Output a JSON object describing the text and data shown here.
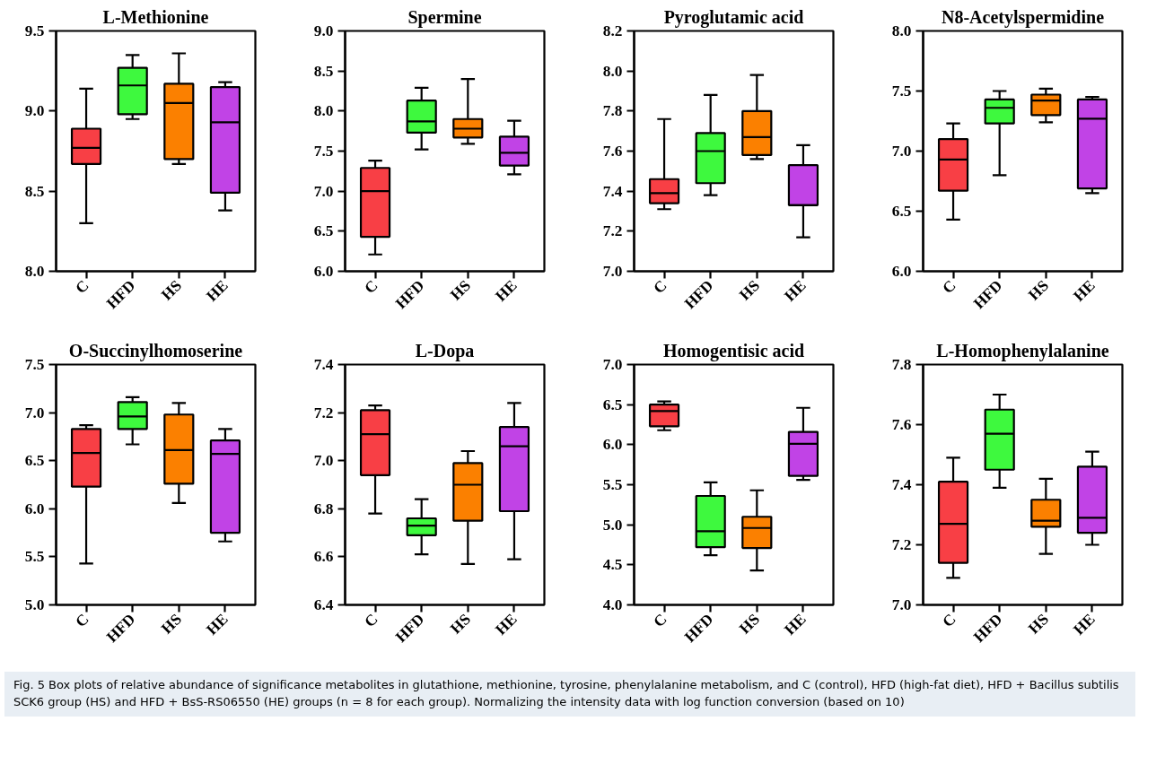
{
  "chart_data": [
    {
      "type": "box",
      "title": "L-Methionine",
      "categories": [
        "C",
        "HFD",
        "HS",
        "HE"
      ],
      "colors": [
        "#f83f45",
        "#3ef93e",
        "#fb8000",
        "#c143e6"
      ],
      "ylim": [
        8.0,
        9.5
      ],
      "yticks": [
        {
          "value": 8.0,
          "label": "8.0"
        },
        {
          "value": 8.5,
          "label": "8.5"
        },
        {
          "value": 9.0,
          "label": "9.0"
        },
        {
          "value": 9.5,
          "label": "9.5"
        }
      ],
      "boxes": [
        {
          "low": 8.3,
          "q1": 8.67,
          "median": 8.77,
          "q3": 8.89,
          "high": 9.14
        },
        {
          "low": 8.95,
          "q1": 8.98,
          "median": 9.16,
          "q3": 9.27,
          "high": 9.35
        },
        {
          "low": 8.67,
          "q1": 8.7,
          "median": 9.05,
          "q3": 9.17,
          "high": 9.36
        },
        {
          "low": 8.38,
          "q1": 8.49,
          "median": 8.93,
          "q3": 9.15,
          "high": 9.18
        }
      ]
    },
    {
      "type": "box",
      "title": "Spermine",
      "categories": [
        "C",
        "HFD",
        "HS",
        "HE"
      ],
      "colors": [
        "#f83f45",
        "#3ef93e",
        "#fb8000",
        "#c143e6"
      ],
      "ylim": [
        6.0,
        9.0
      ],
      "yticks": [
        {
          "value": 6.0,
          "label": "6.0"
        },
        {
          "value": 6.5,
          "label": "6.5"
        },
        {
          "value": 7.0,
          "label": "7.0"
        },
        {
          "value": 7.5,
          "label": "7.5"
        },
        {
          "value": 8.0,
          "label": "8.0"
        },
        {
          "value": 8.5,
          "label": "8.5"
        },
        {
          "value": 9.0,
          "label": "9.0"
        }
      ],
      "boxes": [
        {
          "low": 6.21,
          "q1": 6.43,
          "median": 7.0,
          "q3": 7.29,
          "high": 7.38
        },
        {
          "low": 7.52,
          "q1": 7.73,
          "median": 7.87,
          "q3": 8.13,
          "high": 8.29
        },
        {
          "low": 7.59,
          "q1": 7.67,
          "median": 7.78,
          "q3": 7.9,
          "high": 8.4
        },
        {
          "low": 7.21,
          "q1": 7.32,
          "median": 7.48,
          "q3": 7.68,
          "high": 7.88
        }
      ]
    },
    {
      "type": "box",
      "title": "Pyroglutamic acid",
      "categories": [
        "C",
        "HFD",
        "HS",
        "HE"
      ],
      "colors": [
        "#f83f45",
        "#3ef93e",
        "#fb8000",
        "#c143e6"
      ],
      "ylim": [
        7.0,
        8.2
      ],
      "yticks": [
        {
          "value": 7.0,
          "label": "7.0"
        },
        7.2,
        7.4,
        7.6,
        7.8,
        {
          "value": 8.0,
          "label": "8.0"
        },
        8.2
      ],
      "boxes": [
        {
          "low": 7.31,
          "q1": 7.34,
          "median": 7.39,
          "q3": 7.46,
          "high": 7.76
        },
        {
          "low": 7.38,
          "q1": 7.44,
          "median": 7.6,
          "q3": 7.69,
          "high": 7.88
        },
        {
          "low": 7.56,
          "q1": 7.58,
          "median": 7.67,
          "q3": 7.8,
          "high": 7.98
        },
        {
          "low": 7.17,
          "q1": 7.33,
          "median": 7.33,
          "q3": 7.53,
          "high": 7.63
        }
      ]
    },
    {
      "type": "box",
      "title": "N8-Acetylspermidine",
      "categories": [
        "C",
        "HFD",
        "HS",
        "HE"
      ],
      "colors": [
        "#f83f45",
        "#3ef93e",
        "#fb8000",
        "#c143e6"
      ],
      "ylim": [
        6.0,
        8.0
      ],
      "yticks": [
        {
          "value": 6.0,
          "label": "6.0"
        },
        6.5,
        {
          "value": 7.0,
          "label": "7.0"
        },
        7.5,
        {
          "value": 8.0,
          "label": "8.0"
        }
      ],
      "boxes": [
        {
          "low": 6.43,
          "q1": 6.67,
          "median": 6.93,
          "q3": 7.1,
          "high": 7.23
        },
        {
          "low": 6.8,
          "q1": 7.23,
          "median": 7.36,
          "q3": 7.43,
          "high": 7.5
        },
        {
          "low": 7.24,
          "q1": 7.3,
          "median": 7.42,
          "q3": 7.47,
          "high": 7.52
        },
        {
          "low": 6.65,
          "q1": 6.69,
          "median": 7.27,
          "q3": 7.43,
          "high": 7.45
        }
      ]
    },
    {
      "type": "box",
      "title": "O-Succinylhomoserine",
      "categories": [
        "C",
        "HFD",
        "HS",
        "HE"
      ],
      "colors": [
        "#f83f45",
        "#3ef93e",
        "#fb8000",
        "#c143e6"
      ],
      "ylim": [
        5.0,
        7.5
      ],
      "yticks": [
        {
          "value": 5.0,
          "label": "5.0"
        },
        5.5,
        {
          "value": 6.0,
          "label": "6.0"
        },
        6.5,
        {
          "value": 7.0,
          "label": "7.0"
        },
        7.5
      ],
      "boxes": [
        {
          "low": 5.43,
          "q1": 6.23,
          "median": 6.58,
          "q3": 6.83,
          "high": 6.87
        },
        {
          "low": 6.67,
          "q1": 6.83,
          "median": 6.96,
          "q3": 7.11,
          "high": 7.16
        },
        {
          "low": 6.06,
          "q1": 6.26,
          "median": 6.61,
          "q3": 6.98,
          "high": 7.1
        },
        {
          "low": 5.66,
          "q1": 5.75,
          "median": 6.57,
          "q3": 6.71,
          "high": 6.83
        }
      ]
    },
    {
      "type": "box",
      "title": "L-Dopa",
      "categories": [
        "C",
        "HFD",
        "HS",
        "HE"
      ],
      "colors": [
        "#f83f45",
        "#3ef93e",
        "#fb8000",
        "#c143e6"
      ],
      "ylim": [
        6.4,
        7.4
      ],
      "yticks": [
        6.4,
        6.6,
        6.8,
        {
          "value": 7.0,
          "label": "7.0"
        },
        7.2,
        7.4
      ],
      "boxes": [
        {
          "low": 6.78,
          "q1": 6.94,
          "median": 7.11,
          "q3": 7.21,
          "high": 7.23
        },
        {
          "low": 6.61,
          "q1": 6.69,
          "median": 6.73,
          "q3": 6.76,
          "high": 6.84
        },
        {
          "low": 6.57,
          "q1": 6.75,
          "median": 6.9,
          "q3": 6.99,
          "high": 7.04
        },
        {
          "low": 6.59,
          "q1": 6.79,
          "median": 7.06,
          "q3": 7.14,
          "high": 7.24
        }
      ]
    },
    {
      "type": "box",
      "title": "Homogentisic acid",
      "categories": [
        "C",
        "HFD",
        "HS",
        "HE"
      ],
      "colors": [
        "#f83f45",
        "#3ef93e",
        "#fb8000",
        "#c143e6"
      ],
      "ylim": [
        4.0,
        7.0
      ],
      "yticks": [
        {
          "value": 4.0,
          "label": "4.0"
        },
        4.5,
        {
          "value": 5.0,
          "label": "5.0"
        },
        5.5,
        {
          "value": 6.0,
          "label": "6.0"
        },
        6.5,
        {
          "value": 7.0,
          "label": "7.0"
        }
      ],
      "boxes": [
        {
          "low": 6.18,
          "q1": 6.23,
          "median": 6.42,
          "q3": 6.5,
          "high": 6.54
        },
        {
          "low": 4.62,
          "q1": 4.72,
          "median": 4.92,
          "q3": 5.36,
          "high": 5.53
        },
        {
          "low": 4.43,
          "q1": 4.71,
          "median": 4.96,
          "q3": 5.1,
          "high": 5.43
        },
        {
          "low": 5.56,
          "q1": 5.61,
          "median": 6.01,
          "q3": 6.16,
          "high": 6.46
        }
      ]
    },
    {
      "type": "box",
      "title": "L-Homophenylalanine",
      "categories": [
        "C",
        "HFD",
        "HS",
        "HE"
      ],
      "colors": [
        "#f83f45",
        "#3ef93e",
        "#fb8000",
        "#c143e6"
      ],
      "ylim": [
        7.0,
        7.8
      ],
      "yticks": [
        {
          "value": 7.0,
          "label": "7.0"
        },
        7.2,
        7.4,
        7.6,
        7.8
      ],
      "boxes": [
        {
          "low": 7.09,
          "q1": 7.14,
          "median": 7.27,
          "q3": 7.41,
          "high": 7.49
        },
        {
          "low": 7.39,
          "q1": 7.45,
          "median": 7.57,
          "q3": 7.65,
          "high": 7.7
        },
        {
          "low": 7.17,
          "q1": 7.26,
          "median": 7.28,
          "q3": 7.35,
          "high": 7.42
        },
        {
          "low": 7.2,
          "q1": 7.24,
          "median": 7.29,
          "q3": 7.46,
          "high": 7.51
        }
      ],
      "annotations": [
        "Fig. 5 Box plots of relative abundance of significance metabolites in glutathione, methionine, tyrosine, phenylalanine metabolism, and C (control), HFD (high-fat diet), HFD + Bacillus subtilis SCK6 group (HS) and HFD + BsS-RS06550 (HE) groups (n = 8 for each group). Normalizing the intensity data with log function conversion (based on 10)"
      ]
    }
  ]
}
